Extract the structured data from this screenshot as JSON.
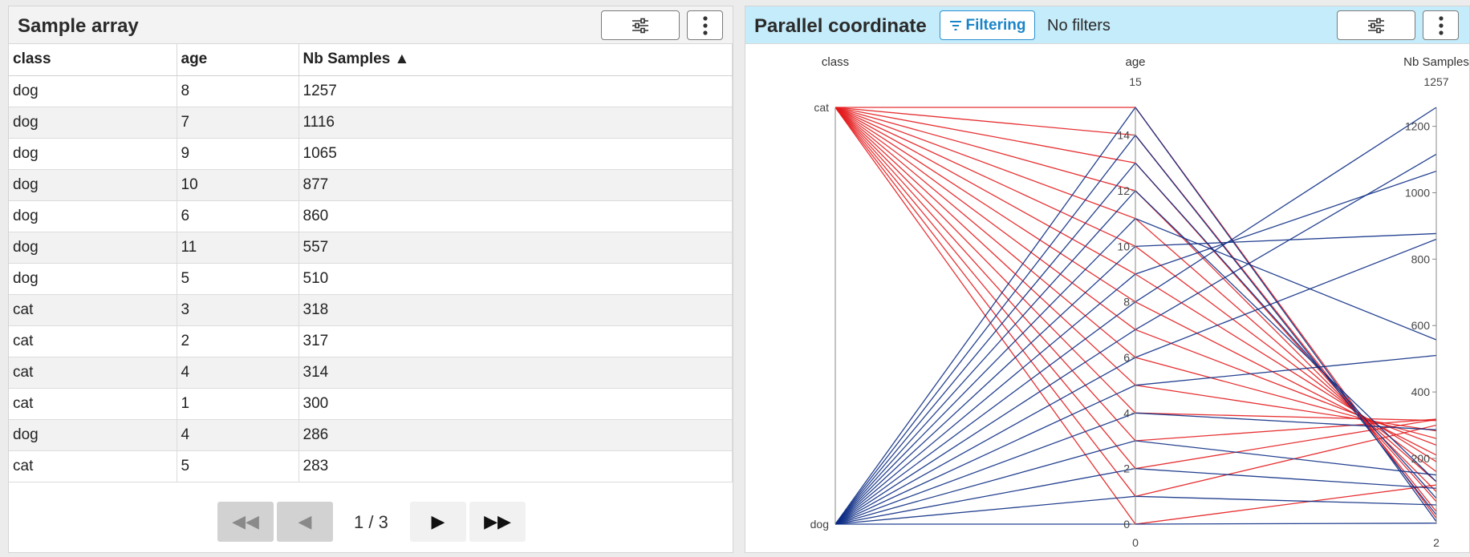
{
  "left_panel": {
    "title": "Sample array",
    "columns": [
      "class",
      "age",
      "Nb Samples ▲"
    ],
    "rows": [
      [
        "dog",
        "8",
        "1257"
      ],
      [
        "dog",
        "7",
        "1116"
      ],
      [
        "dog",
        "9",
        "1065"
      ],
      [
        "dog",
        "10",
        "877"
      ],
      [
        "dog",
        "6",
        "860"
      ],
      [
        "dog",
        "11",
        "557"
      ],
      [
        "dog",
        "5",
        "510"
      ],
      [
        "cat",
        "3",
        "318"
      ],
      [
        "cat",
        "2",
        "317"
      ],
      [
        "cat",
        "4",
        "314"
      ],
      [
        "cat",
        "1",
        "300"
      ],
      [
        "dog",
        "4",
        "286"
      ],
      [
        "cat",
        "5",
        "283"
      ]
    ],
    "pager": {
      "first": "◀◀",
      "prev": "◀",
      "page": "1 / 3",
      "next": "▶",
      "last": "▶▶"
    }
  },
  "right_panel": {
    "title": "Parallel coordinate",
    "filtering_label": "Filtering",
    "filters_status": "No filters"
  },
  "colors": {
    "cat": "#e31a1c",
    "dog": "#0c2c84"
  },
  "chart_data": {
    "type": "parallel-coordinates",
    "axes": [
      {
        "name": "class",
        "categories": [
          "cat",
          "dog"
        ]
      },
      {
        "name": "age",
        "range": [
          0,
          15
        ],
        "ticks": [
          "0",
          "2",
          "4",
          "6",
          "8",
          "10",
          "12",
          "14"
        ],
        "max_label": "15",
        "min_label": "0"
      },
      {
        "name": "Nb Samples",
        "range": [
          2,
          1257
        ],
        "ticks": [
          "200",
          "400",
          "600",
          "800",
          "1000",
          "1200"
        ],
        "max_label": "1257",
        "min_label": "2"
      }
    ],
    "lines": [
      [
        "cat",
        0,
        120
      ],
      [
        "cat",
        1,
        300
      ],
      [
        "cat",
        2,
        317
      ],
      [
        "cat",
        3,
        318
      ],
      [
        "cat",
        4,
        314
      ],
      [
        "cat",
        5,
        283
      ],
      [
        "cat",
        6,
        260
      ],
      [
        "cat",
        7,
        240
      ],
      [
        "cat",
        8,
        210
      ],
      [
        "cat",
        9,
        190
      ],
      [
        "cat",
        10,
        160
      ],
      [
        "cat",
        11,
        130
      ],
      [
        "cat",
        12,
        100
      ],
      [
        "cat",
        13,
        70
      ],
      [
        "cat",
        14,
        40
      ],
      [
        "cat",
        15,
        20
      ],
      [
        "dog",
        0,
        5
      ],
      [
        "dog",
        1,
        60
      ],
      [
        "dog",
        2,
        110
      ],
      [
        "dog",
        3,
        150
      ],
      [
        "dog",
        4,
        286
      ],
      [
        "dog",
        5,
        510
      ],
      [
        "dog",
        6,
        860
      ],
      [
        "dog",
        7,
        1116
      ],
      [
        "dog",
        8,
        1257
      ],
      [
        "dog",
        9,
        1065
      ],
      [
        "dog",
        10,
        877
      ],
      [
        "dog",
        11,
        557
      ],
      [
        "dog",
        12,
        130
      ],
      [
        "dog",
        13,
        80
      ],
      [
        "dog",
        14,
        30
      ],
      [
        "dog",
        15,
        10
      ]
    ]
  }
}
